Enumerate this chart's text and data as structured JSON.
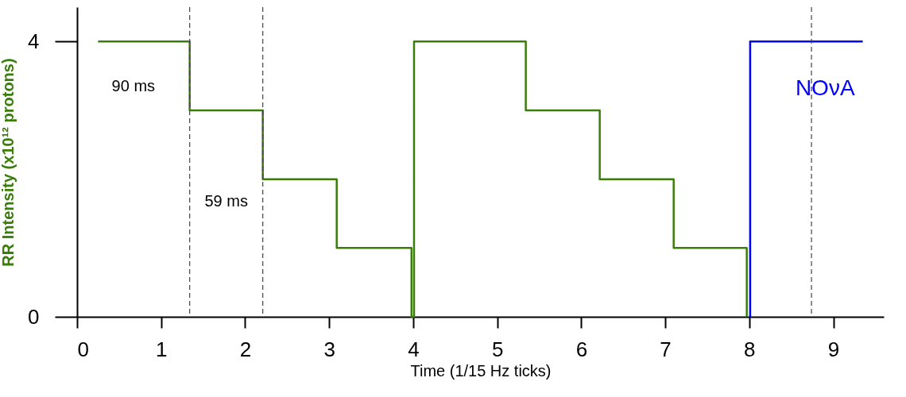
{
  "chart_data": {
    "type": "step",
    "xlabel": "Time (1/15 Hz ticks)",
    "ylabel": "RR Intensity (x10¹² protons)",
    "xlim": [
      0,
      9.6
    ],
    "xticks": [
      0,
      1,
      2,
      3,
      4,
      5,
      6,
      7,
      8,
      9
    ],
    "ylim": [
      0,
      4.5
    ],
    "yticks": [
      0,
      4
    ],
    "series": [
      {
        "color": "#3a7d0a",
        "x": [
          0.25,
          1.34,
          2.21,
          3.09,
          3.98,
          4.01,
          5.34,
          6.22,
          7.1,
          7.97
        ],
        "values": [
          4,
          3,
          2,
          1,
          0,
          4,
          3,
          2,
          1,
          0
        ]
      },
      {
        "name": "NOνA",
        "color": "#0000ff",
        "x": [
          8.01,
          8.01,
          9.35
        ],
        "values": [
          0,
          4,
          4
        ]
      }
    ],
    "ref_lines": [
      {
        "axis": "x",
        "value": 1.34,
        "color": "#444444",
        "line_style": "dashed"
      },
      {
        "axis": "x",
        "value": 2.21,
        "color": "#444444",
        "line_style": "dashed"
      },
      {
        "axis": "x",
        "value": 8.74,
        "color": "#444444",
        "line_style": "dashed"
      }
    ],
    "annotations": [
      "90 ms",
      "59 ms"
    ],
    "grid": false,
    "line_style": "solid"
  }
}
